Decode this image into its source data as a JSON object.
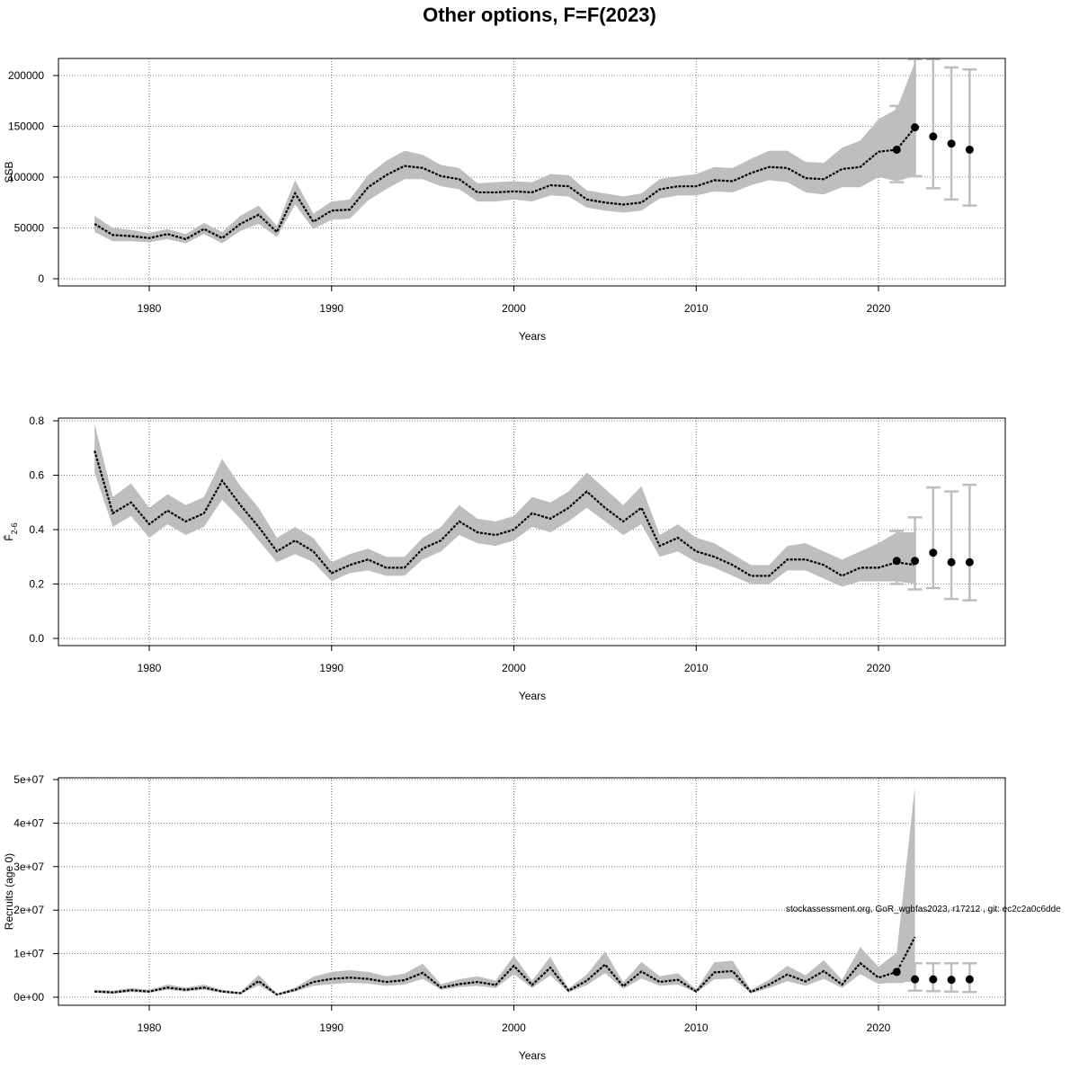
{
  "title": "Other options, F=F(2023)",
  "footnote": "stockassessment.org, GoR_wgbfas2023, r17212 , git: ec2c2a0c6dde",
  "colors": {
    "band": "#bebebe",
    "line": "#000000",
    "grid": "#555555",
    "errorbar": "#bebebe",
    "point": "#000000"
  },
  "chart_data": [
    {
      "type": "line",
      "name": "ssb-panel",
      "xlabel": "Years",
      "ylabel": "SSB",
      "xlim": [
        1977,
        2025
      ],
      "ylim": [
        0,
        215000
      ],
      "xticks": [
        1980,
        1990,
        2000,
        2010,
        2020
      ],
      "yticks": [
        0,
        50000,
        100000,
        150000,
        200000
      ],
      "ytick_labels": [
        "0",
        "50000",
        "100000",
        "150000",
        "200000"
      ],
      "grid": true,
      "series": [
        {
          "x": [
            1977,
            1978,
            1979,
            1980,
            1981,
            1982,
            1983,
            1984,
            1985,
            1986,
            1987,
            1988,
            1989,
            1990,
            1991,
            1992,
            1993,
            1994,
            1995,
            1996,
            1997,
            1998,
            1999,
            2000,
            2001,
            2002,
            2003,
            2004,
            2005,
            2006,
            2007,
            2008,
            2009,
            2010,
            2011,
            2012,
            2013,
            2014,
            2015,
            2016,
            2017,
            2018,
            2019,
            2020,
            2021,
            2022
          ],
          "y": [
            54000,
            43000,
            42000,
            40000,
            44000,
            39000,
            49000,
            40000,
            54000,
            63000,
            46000,
            84000,
            56000,
            67000,
            68000,
            90000,
            102000,
            111000,
            109000,
            101000,
            98000,
            85000,
            85000,
            86000,
            85000,
            92000,
            91000,
            78000,
            75000,
            73000,
            75000,
            88000,
            91000,
            91000,
            97000,
            96000,
            104000,
            110000,
            109000,
            99000,
            98000,
            108000,
            110000,
            125000,
            127000,
            149000
          ],
          "lower": [
            46000,
            37000,
            37000,
            36000,
            39000,
            35000,
            44000,
            35000,
            47000,
            54000,
            41000,
            73000,
            49000,
            58000,
            59000,
            77000,
            88000,
            98000,
            98000,
            91000,
            88000,
            76000,
            76000,
            78000,
            76000,
            82000,
            81000,
            70000,
            67000,
            65000,
            67000,
            79000,
            82000,
            82000,
            86000,
            85000,
            92000,
            97000,
            95000,
            85000,
            83000,
            90000,
            90000,
            100000,
            96000,
            101000
          ],
          "upper": [
            62000,
            50000,
            48000,
            45000,
            49000,
            44000,
            55000,
            46000,
            62000,
            72000,
            52000,
            97000,
            64000,
            76000,
            78000,
            102000,
            116000,
            126000,
            122000,
            112000,
            109000,
            94000,
            95000,
            96000,
            95000,
            103000,
            102000,
            87000,
            84000,
            81000,
            84000,
            98000,
            101000,
            103000,
            110000,
            109000,
            118000,
            126000,
            126000,
            115000,
            114000,
            129000,
            136000,
            157000,
            167000,
            213000
          ]
        }
      ],
      "points": [
        {
          "x": 2021,
          "y": 127000,
          "lower": 95000,
          "upper": 170000
        },
        {
          "x": 2022,
          "y": 149000,
          "lower": 101000,
          "upper": 216000
        },
        {
          "x": 2023,
          "y": 140000,
          "lower": 89000,
          "upper": 222000
        },
        {
          "x": 2024,
          "y": 133000,
          "lower": 78000,
          "upper": 208000
        },
        {
          "x": 2025,
          "y": 127000,
          "lower": 72000,
          "upper": 206000
        }
      ]
    },
    {
      "type": "line",
      "name": "fbar-panel",
      "xlabel": "Years",
      "ylabel": "F̄",
      "ylabel_sub": "2-6",
      "xlim": [
        1977,
        2025
      ],
      "ylim": [
        0,
        0.8
      ],
      "xticks": [
        1980,
        1990,
        2000,
        2010,
        2020
      ],
      "yticks": [
        0.0,
        0.2,
        0.4,
        0.6,
        0.8
      ],
      "ytick_labels": [
        "0.0",
        "0.2",
        "0.4",
        "0.6",
        "0.8"
      ],
      "grid": true,
      "series": [
        {
          "x": [
            1977,
            1978,
            1979,
            1980,
            1981,
            1982,
            1983,
            1984,
            1985,
            1986,
            1987,
            1988,
            1989,
            1990,
            1991,
            1992,
            1993,
            1994,
            1995,
            1996,
            1997,
            1998,
            1999,
            2000,
            2001,
            2002,
            2003,
            2004,
            2005,
            2006,
            2007,
            2008,
            2009,
            2010,
            2011,
            2012,
            2013,
            2014,
            2015,
            2016,
            2017,
            2018,
            2019,
            2020,
            2021,
            2022
          ],
          "y": [
            0.69,
            0.46,
            0.5,
            0.42,
            0.47,
            0.43,
            0.46,
            0.58,
            0.49,
            0.41,
            0.32,
            0.36,
            0.32,
            0.24,
            0.27,
            0.29,
            0.26,
            0.26,
            0.33,
            0.36,
            0.43,
            0.39,
            0.38,
            0.4,
            0.46,
            0.44,
            0.48,
            0.54,
            0.48,
            0.43,
            0.48,
            0.34,
            0.37,
            0.32,
            0.3,
            0.27,
            0.23,
            0.23,
            0.29,
            0.29,
            0.27,
            0.23,
            0.26,
            0.26,
            0.28,
            0.27
          ],
          "lower": [
            0.61,
            0.41,
            0.45,
            0.37,
            0.42,
            0.38,
            0.41,
            0.51,
            0.44,
            0.36,
            0.28,
            0.31,
            0.28,
            0.21,
            0.24,
            0.25,
            0.23,
            0.23,
            0.29,
            0.32,
            0.38,
            0.35,
            0.34,
            0.36,
            0.41,
            0.39,
            0.43,
            0.48,
            0.43,
            0.38,
            0.42,
            0.3,
            0.32,
            0.28,
            0.26,
            0.23,
            0.2,
            0.2,
            0.25,
            0.25,
            0.22,
            0.19,
            0.21,
            0.21,
            0.21,
            0.2
          ],
          "upper": [
            0.79,
            0.52,
            0.57,
            0.48,
            0.53,
            0.49,
            0.52,
            0.66,
            0.56,
            0.48,
            0.37,
            0.41,
            0.37,
            0.28,
            0.31,
            0.33,
            0.3,
            0.3,
            0.37,
            0.41,
            0.49,
            0.44,
            0.43,
            0.45,
            0.52,
            0.5,
            0.54,
            0.61,
            0.55,
            0.49,
            0.56,
            0.38,
            0.42,
            0.37,
            0.35,
            0.31,
            0.27,
            0.27,
            0.34,
            0.35,
            0.32,
            0.29,
            0.32,
            0.35,
            0.39,
            0.39
          ]
        }
      ],
      "points": [
        {
          "x": 2021,
          "y": 0.285,
          "lower": 0.2,
          "upper": 0.395
        },
        {
          "x": 2022,
          "y": 0.285,
          "lower": 0.18,
          "upper": 0.445
        },
        {
          "x": 2023,
          "y": 0.315,
          "lower": 0.185,
          "upper": 0.555
        },
        {
          "x": 2024,
          "y": 0.28,
          "lower": 0.145,
          "upper": 0.54
        },
        {
          "x": 2025,
          "y": 0.28,
          "lower": 0.14,
          "upper": 0.565
        }
      ]
    },
    {
      "type": "line",
      "name": "recruits-panel",
      "xlabel": "Years",
      "ylabel": "Recruits (age 0)",
      "xlim": [
        1977,
        2025
      ],
      "ylim": [
        0,
        50000000
      ],
      "xticks": [
        1980,
        1990,
        2000,
        2010,
        2020
      ],
      "yticks": [
        0,
        10000000,
        20000000,
        30000000,
        40000000,
        50000000
      ],
      "ytick_labels": [
        "0e+00",
        "1e+07",
        "2e+07",
        "3e+07",
        "4e+07",
        "5e+07"
      ],
      "grid": true,
      "series": [
        {
          "x": [
            1977,
            1978,
            1979,
            1980,
            1981,
            1982,
            1983,
            1984,
            1985,
            1986,
            1987,
            1988,
            1989,
            1990,
            1991,
            1992,
            1993,
            1994,
            1995,
            1996,
            1997,
            1998,
            1999,
            2000,
            2001,
            2002,
            2003,
            2004,
            2005,
            2006,
            2007,
            2008,
            2009,
            2010,
            2011,
            2012,
            2013,
            2014,
            2015,
            2016,
            2017,
            2018,
            2019,
            2020,
            2021,
            2022
          ],
          "y": [
            1300000,
            1100000,
            1600000,
            1300000,
            2200000,
            1700000,
            2200000,
            1300000,
            900000,
            3700000,
            600000,
            1700000,
            3500000,
            4200000,
            4500000,
            4200000,
            3500000,
            3900000,
            5600000,
            2200000,
            3000000,
            3500000,
            2800000,
            7200000,
            2800000,
            6800000,
            1500000,
            3800000,
            7500000,
            2500000,
            5900000,
            3500000,
            4000000,
            1300000,
            5700000,
            6000000,
            1200000,
            2900000,
            5200000,
            3600000,
            6000000,
            2900000,
            7800000,
            4500000,
            5800000,
            13800000
          ],
          "lower": [
            1000000,
            800000,
            1200000,
            1000000,
            1700000,
            1300000,
            1700000,
            1000000,
            700000,
            2700000,
            400000,
            1300000,
            2600000,
            3000000,
            3300000,
            3100000,
            2600000,
            2900000,
            4200000,
            1700000,
            2300000,
            2600000,
            2100000,
            5300000,
            2100000,
            5000000,
            1100000,
            2800000,
            5500000,
            1900000,
            4300000,
            2600000,
            2900000,
            1000000,
            4100000,
            4300000,
            900000,
            2100000,
            3700000,
            2600000,
            4200000,
            2100000,
            5300000,
            3000000,
            3500000,
            3500000
          ],
          "upper": [
            1700000,
            1500000,
            2100000,
            1700000,
            2900000,
            2200000,
            2900000,
            1700000,
            1200000,
            5100000,
            800000,
            2200000,
            4700000,
            5800000,
            6200000,
            5800000,
            4800000,
            5400000,
            7700000,
            3000000,
            4100000,
            4800000,
            3800000,
            9500000,
            3800000,
            9300000,
            2000000,
            5200000,
            10500000,
            3400000,
            8100000,
            4800000,
            5500000,
            1800000,
            8000000,
            8400000,
            1700000,
            4000000,
            7200000,
            5000000,
            8500000,
            4000000,
            11500000,
            7000000,
            10200000,
            48500000
          ]
        }
      ],
      "points": [
        {
          "x": 2021,
          "y": 5800000,
          "lower": 3500000,
          "upper": 7800000
        },
        {
          "x": 2022,
          "y": 4100000,
          "lower": 1500000,
          "upper": 7800000
        },
        {
          "x": 2023,
          "y": 4100000,
          "lower": 1400000,
          "upper": 7800000
        },
        {
          "x": 2024,
          "y": 4000000,
          "lower": 1300000,
          "upper": 7800000
        },
        {
          "x": 2025,
          "y": 4100000,
          "lower": 1200000,
          "upper": 7800000
        }
      ]
    }
  ]
}
